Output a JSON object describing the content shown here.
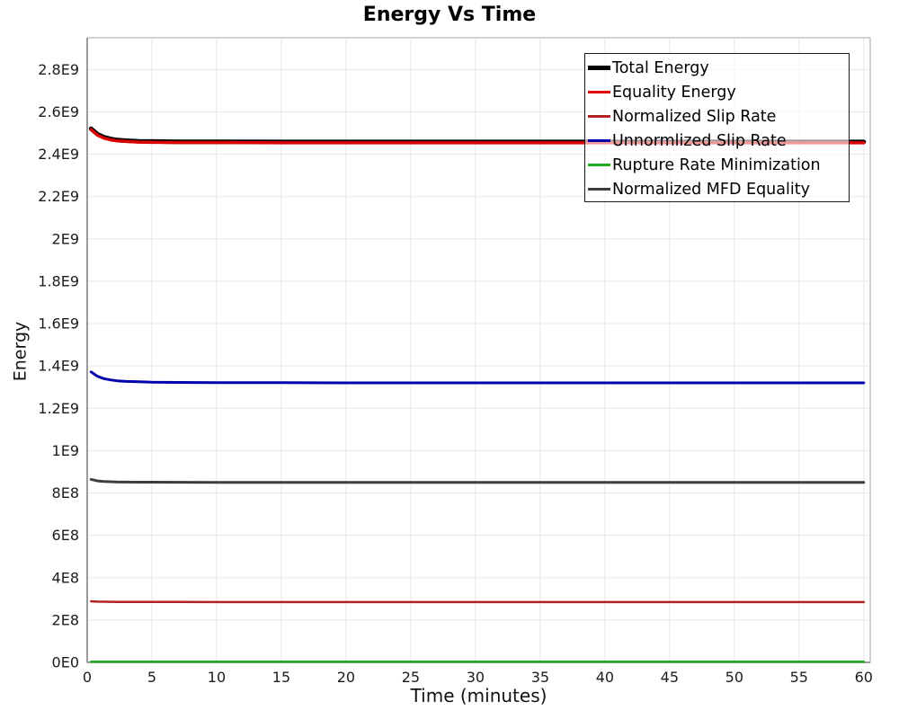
{
  "chart_data": {
    "type": "line",
    "title": "Energy Vs Time",
    "xlabel": "Time (minutes)",
    "ylabel": "Energy",
    "xlim": [
      0,
      60.5
    ],
    "ylim": [
      0,
      2950000000
    ],
    "grid": true,
    "legend_position": "top-right",
    "x_ticks": [
      0,
      5,
      10,
      15,
      20,
      25,
      30,
      35,
      40,
      45,
      50,
      55,
      60
    ],
    "x_tick_labels": [
      "0",
      "5",
      "10",
      "15",
      "20",
      "25",
      "30",
      "35",
      "40",
      "45",
      "50",
      "55",
      "60"
    ],
    "y_ticks": [
      0,
      200000000.0,
      400000000.0,
      600000000.0,
      800000000.0,
      1000000000.0,
      1200000000.0,
      1400000000.0,
      1600000000.0,
      1800000000.0,
      2000000000.0,
      2200000000.0,
      2400000000.0,
      2600000000.0,
      2800000000.0
    ],
    "y_tick_labels": [
      "0E0",
      "2E8",
      "4E8",
      "6E8",
      "8E8",
      "1E9",
      "1.2E9",
      "1.4E9",
      "1.6E9",
      "1.8E9",
      "2E9",
      "2.2E9",
      "2.4E9",
      "2.6E9",
      "2.8E9"
    ],
    "x": [
      0.3,
      0.8,
      1.3,
      1.8,
      2.3,
      3,
      4,
      5,
      7,
      10,
      15,
      20,
      25,
      30,
      35,
      40,
      45,
      50,
      55,
      60
    ],
    "series": [
      {
        "name": "Total Energy",
        "color": "#000000",
        "line_width": 5,
        "values": [
          2520000000.0,
          2494000000.0,
          2480000000.0,
          2472000000.0,
          2467000000.0,
          2464000000.0,
          2461000000.0,
          2460000000.0,
          2459000000.0,
          2459000000.0,
          2458000000.0,
          2458000000.0,
          2458000000.0,
          2458000000.0,
          2458000000.0,
          2458000000.0,
          2458000000.0,
          2458000000.0,
          2458000000.0,
          2458000000.0
        ]
      },
      {
        "name": "Equality Energy",
        "color": "#dd0000",
        "line_width": 3.5,
        "values": [
          2516000000.0,
          2490000000.0,
          2476000000.0,
          2468000000.0,
          2463000000.0,
          2460000000.0,
          2457000000.0,
          2456000000.0,
          2455000000.0,
          2455000000.0,
          2454000000.0,
          2454000000.0,
          2454000000.0,
          2454000000.0,
          2454000000.0,
          2454000000.0,
          2454000000.0,
          2454000000.0,
          2454000000.0,
          2454000000.0
        ]
      },
      {
        "name": "Normalized Slip Rate",
        "color": "#b22222",
        "line_width": 2.5,
        "values": [
          288000000.0,
          287000000.0,
          286500000.0,
          286000000.0,
          285800000.0,
          285500000.0,
          285300000.0,
          285200000.0,
          285100000.0,
          285000000.0,
          285000000.0,
          285000000.0,
          285000000.0,
          285000000.0,
          285000000.0,
          285000000.0,
          285000000.0,
          285000000.0,
          285000000.0,
          285000000.0
        ]
      },
      {
        "name": "Unnormlized Slip Rate",
        "color": "#0000ad",
        "line_width": 3,
        "values": [
          1372000000.0,
          1351000000.0,
          1340000000.0,
          1334000000.0,
          1330000000.0,
          1327000000.0,
          1325000000.0,
          1323000000.0,
          1322000000.0,
          1321000000.0,
          1321000000.0,
          1320000000.0,
          1320000000.0,
          1320000000.0,
          1320000000.0,
          1320000000.0,
          1320000000.0,
          1320000000.0,
          1320000000.0,
          1320000000.0
        ]
      },
      {
        "name": "Rupture Rate Minimization",
        "color": "#1faa1f",
        "line_width": 2.5,
        "values": [
          3000000.0,
          3000000.0,
          3000000.0,
          3000000.0,
          3000000.0,
          3000000.0,
          3000000.0,
          3000000.0,
          3000000.0,
          3000000.0,
          3000000.0,
          3000000.0,
          3000000.0,
          3000000.0,
          3000000.0,
          3000000.0,
          3000000.0,
          3000000.0,
          3000000.0,
          3000000.0
        ]
      },
      {
        "name": "Normalized MFD Equality",
        "color": "#3d3d3d",
        "line_width": 3,
        "values": [
          864000000.0,
          857000000.0,
          854000000.0,
          853000000.0,
          852000000.0,
          851500000.0,
          851000000.0,
          851000000.0,
          850500000.0,
          850000000.0,
          850000000.0,
          850000000.0,
          850000000.0,
          850000000.0,
          850000000.0,
          850000000.0,
          850000000.0,
          850000000.0,
          850000000.0,
          850000000.0
        ]
      }
    ],
    "style": {
      "grid_color": "#ebebeb",
      "frame_color": "#c4c4c4",
      "spine_color": "#8f8f8f",
      "tick_label_size": 16
    }
  }
}
